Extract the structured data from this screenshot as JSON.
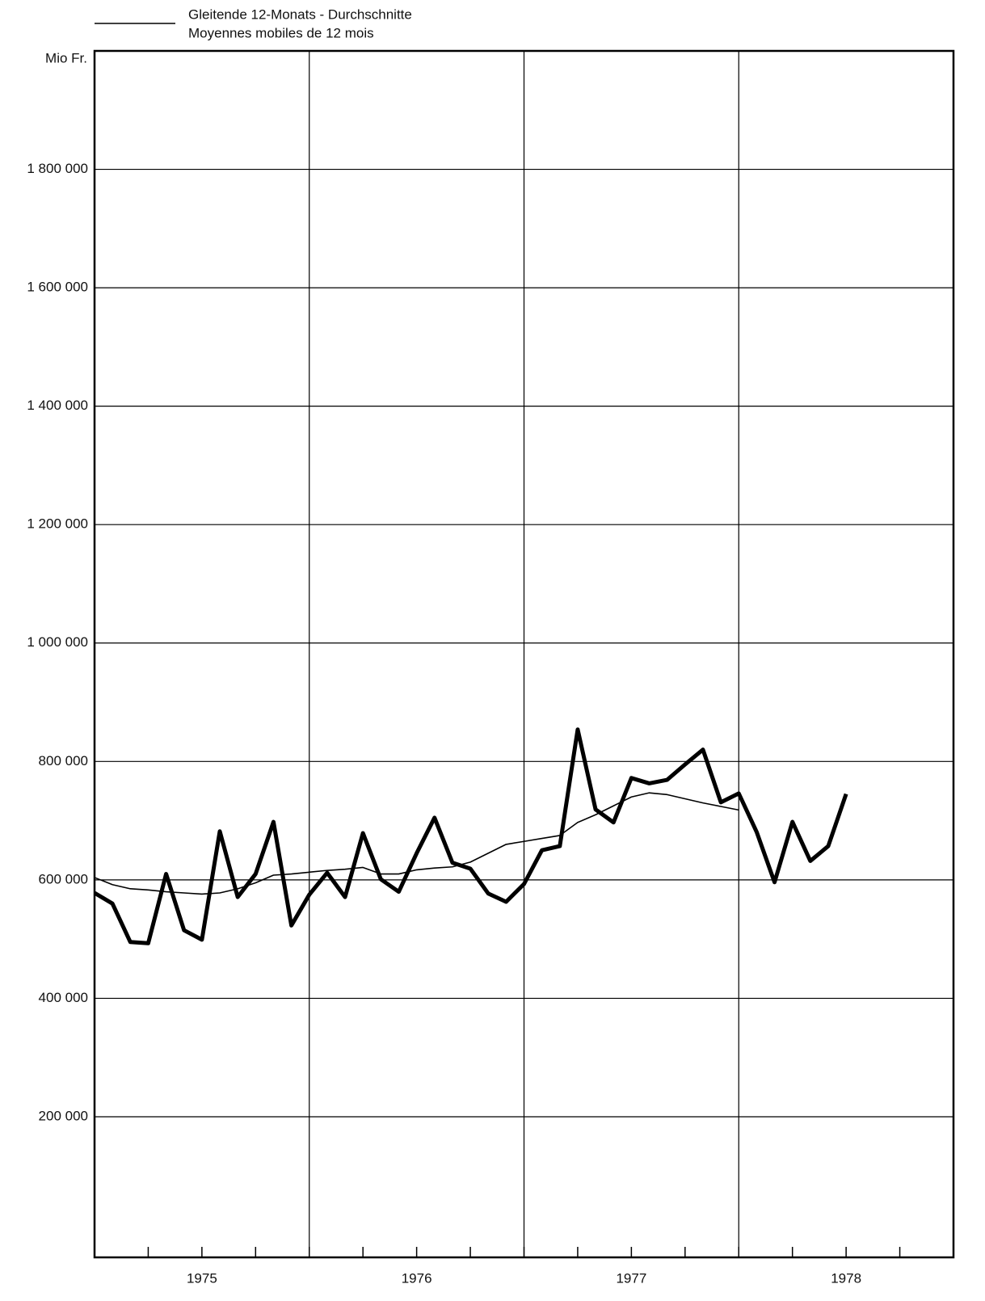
{
  "chart_data": {
    "type": "line",
    "y_unit": "Mio Fr.",
    "legend_text_2": "Moyennes mobiles de 12 mois",
    "x": [
      1975,
      1975.0833,
      1975.1667,
      1975.25,
      1975.3333,
      1975.4167,
      1975.5,
      1975.5833,
      1975.6667,
      1975.75,
      1975.8333,
      1975.9167,
      1976,
      1976.0833,
      1976.1667,
      1976.25,
      1976.3333,
      1976.4167,
      1976.5,
      1976.5833,
      1976.6667,
      1976.75,
      1976.8333,
      1976.9167,
      1977,
      1977.0833,
      1977.1667,
      1977.25,
      1977.3333,
      1977.4167,
      1977.5,
      1977.5833,
      1977.6667,
      1977.75,
      1977.8333,
      1977.9167,
      1978,
      1978.0833,
      1978.1667,
      1978.25,
      1978.3333,
      1978.4167,
      1978.5
    ],
    "series": [
      {
        "color": "#000000",
        "width": 5,
        "values": [
          578000,
          560000,
          495000,
          493000,
          610000,
          515000,
          499000,
          682000,
          571000,
          610000,
          698000,
          523000,
          575000,
          612000,
          571000,
          679000,
          601000,
          580000,
          645000,
          705000,
          629000,
          619000,
          577000,
          563000,
          593000,
          650000,
          657000,
          854000,
          719000,
          697000,
          772000,
          763000,
          769000,
          795000,
          820000,
          731000,
          746000,
          681000,
          596000,
          698000,
          632000,
          657000,
          745000
        ]
      },
      {
        "name": "Gleitende 12-Monats - Durchschnitte",
        "color": "#000000",
        "width": 1.6,
        "values": [
          604000,
          592000,
          585000,
          583000,
          580000,
          578000,
          576000,
          578000,
          585000,
          595000,
          608000,
          610000,
          613000,
          616000,
          618000,
          621000,
          610000,
          610000,
          617000,
          620000,
          622000,
          630000,
          645000,
          660000,
          665000,
          670000,
          675000,
          697000,
          710000,
          725000,
          740000,
          747000,
          744000,
          737000,
          730000,
          724000,
          718000,
          null,
          null,
          null,
          null,
          null,
          null
        ]
      }
    ],
    "xlim": [
      1975,
      1979
    ],
    "xticks": [
      {
        "value": 1975.5,
        "label": "1975"
      },
      {
        "value": 1976.5,
        "label": "1976"
      },
      {
        "value": 1977.5,
        "label": "1977"
      },
      {
        "value": 1978.5,
        "label": "1978"
      }
    ],
    "xminor_ticks": [
      1975.25,
      1975.5,
      1975.75,
      1976,
      1976.25,
      1976.5,
      1976.75,
      1977,
      1977.25,
      1977.5,
      1977.75,
      1978,
      1978.25,
      1978.5,
      1978.75
    ],
    "xgrid": [
      1976,
      1977,
      1978
    ],
    "ylim": [
      -37500,
      2000000
    ],
    "yticks": [
      {
        "value": 200000,
        "label": "200 000"
      },
      {
        "value": 400000,
        "label": "400 000"
      },
      {
        "value": 600000,
        "label": "600 000"
      },
      {
        "value": 800000,
        "label": "800 000"
      },
      {
        "value": 1000000,
        "label": "1 000 000"
      },
      {
        "value": 1200000,
        "label": "1 200 000"
      },
      {
        "value": 1400000,
        "label": "1 400 000"
      },
      {
        "value": 1600000,
        "label": "1 600 000"
      },
      {
        "value": 1800000,
        "label": "1 800 000"
      }
    ],
    "grid": true
  }
}
